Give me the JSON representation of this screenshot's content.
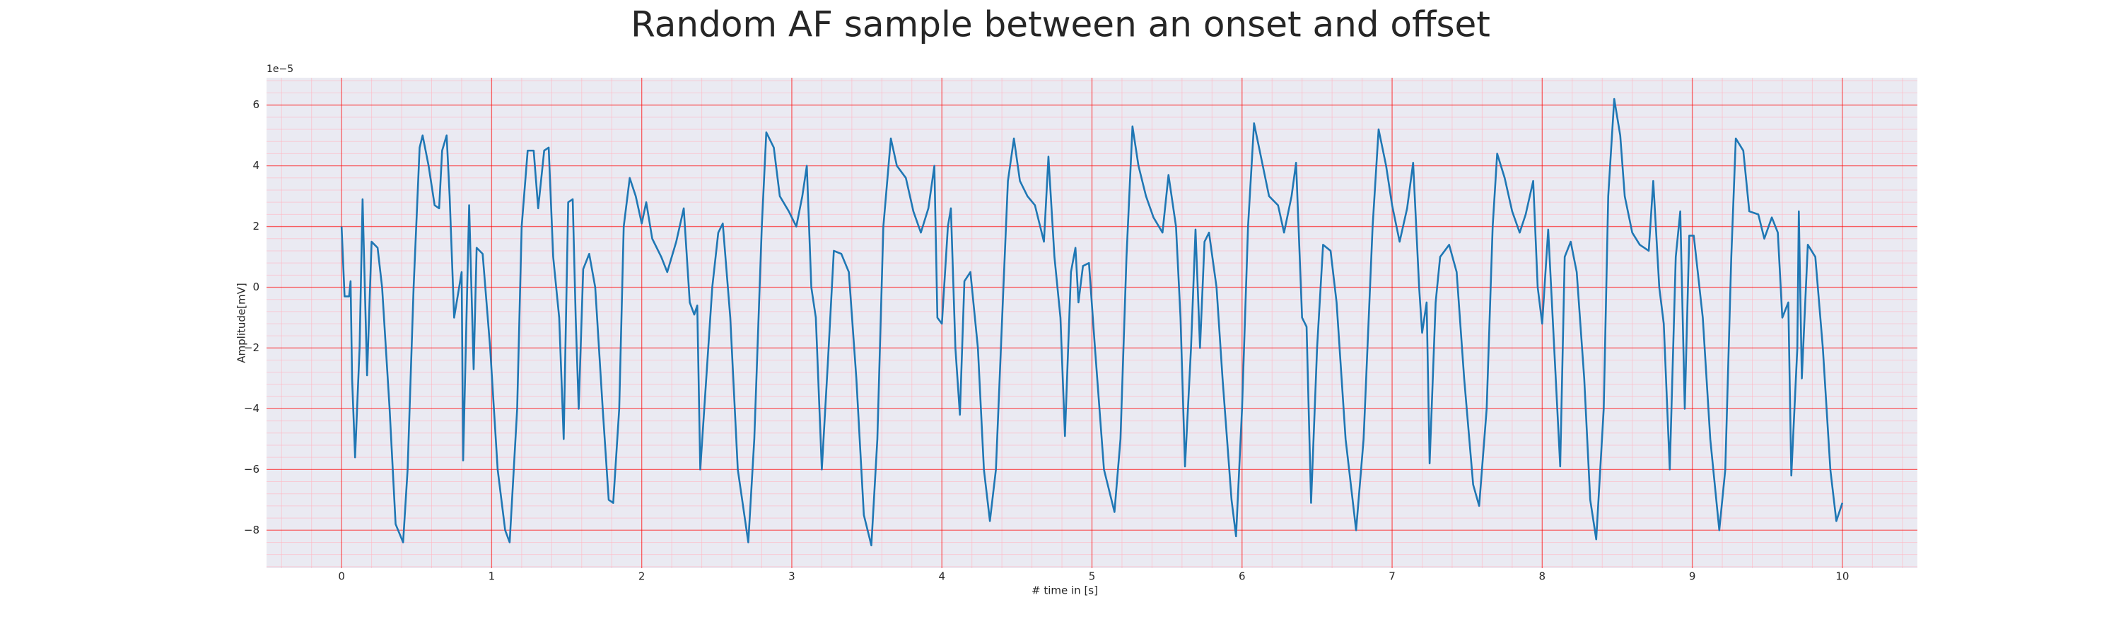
{
  "chart_data": {
    "type": "line",
    "title": "Random AF sample between an onset and offset",
    "xlabel": "# time in [s]",
    "ylabel": "Amplitude[mV]",
    "offset_label": "1e−5",
    "xlim": [
      -0.5,
      10.5
    ],
    "ylim": [
      -9.25,
      6.9
    ],
    "xticks": [
      0,
      1,
      2,
      3,
      4,
      5,
      6,
      7,
      8,
      9,
      10
    ],
    "yticks": [
      {
        "value": -8,
        "label": "−8"
      },
      {
        "value": -6,
        "label": "−6"
      },
      {
        "value": -4,
        "label": "−4"
      },
      {
        "value": -2,
        "label": "−2"
      },
      0,
      2,
      4,
      6
    ],
    "grid": true,
    "minor_grid": true,
    "series": [
      {
        "color": "#1f77b4",
        "x": [
          0,
          0.02,
          0.05,
          0.06,
          0.07,
          0.09,
          0.12,
          0.14,
          0.17,
          0.2,
          0.24,
          0.27,
          0.32,
          0.36,
          0.41,
          0.44,
          0.48,
          0.52,
          0.54,
          0.58,
          0.62,
          0.65,
          0.67,
          0.7,
          0.72,
          0.75,
          0.78,
          0.8,
          0.81,
          0.85,
          0.88,
          0.9,
          0.94,
          0.99,
          1.04,
          1.09,
          1.12,
          1.17,
          1.2,
          1.24,
          1.28,
          1.31,
          1.35,
          1.38,
          1.41,
          1.45,
          1.48,
          1.51,
          1.54,
          1.56,
          1.58,
          1.61,
          1.65,
          1.69,
          1.74,
          1.78,
          1.81,
          1.85,
          1.88,
          1.92,
          1.96,
          2.0,
          2.03,
          2.07,
          2.13,
          2.17,
          2.23,
          2.28,
          2.32,
          2.35,
          2.37,
          2.39,
          2.43,
          2.47,
          2.51,
          2.54,
          2.59,
          2.64,
          2.71,
          2.75,
          2.8,
          2.83,
          2.88,
          2.92,
          2.98,
          3.03,
          3.07,
          3.1,
          3.13,
          3.16,
          3.2,
          3.24,
          3.28,
          3.33,
          3.38,
          3.43,
          3.48,
          3.53,
          3.57,
          3.61,
          3.66,
          3.7,
          3.76,
          3.81,
          3.86,
          3.91,
          3.95,
          3.97,
          4.0,
          4.04,
          4.06,
          4.09,
          4.12,
          4.15,
          4.19,
          4.24,
          4.28,
          4.32,
          4.36,
          4.41,
          4.44,
          4.48,
          4.52,
          4.57,
          4.62,
          4.68,
          4.71,
          4.75,
          4.79,
          4.82,
          4.86,
          4.89,
          4.91,
          4.94,
          4.98,
          5.02,
          5.08,
          5.15,
          5.19,
          5.23,
          5.27,
          5.31,
          5.36,
          5.41,
          5.47,
          5.51,
          5.56,
          5.59,
          5.62,
          5.66,
          5.69,
          5.72,
          5.75,
          5.78,
          5.83,
          5.87,
          5.93,
          5.96,
          6.0,
          6.04,
          6.08,
          6.13,
          6.18,
          6.24,
          6.28,
          6.33,
          6.36,
          6.4,
          6.43,
          6.46,
          6.5,
          6.54,
          6.59,
          6.63,
          6.69,
          6.76,
          6.81,
          6.87,
          6.91,
          6.96,
          7.0,
          7.05,
          7.1,
          7.14,
          7.18,
          7.2,
          7.23,
          7.25,
          7.29,
          7.32,
          7.38,
          7.43,
          7.48,
          7.54,
          7.58,
          7.63,
          7.67,
          7.7,
          7.75,
          7.8,
          7.85,
          7.89,
          7.94,
          7.97,
          8.0,
          8.04,
          8.08,
          8.12,
          8.15,
          8.19,
          8.23,
          8.28,
          8.32,
          8.36,
          8.41,
          8.44,
          8.48,
          8.52,
          8.55,
          8.6,
          8.65,
          8.71,
          8.74,
          8.78,
          8.81,
          8.85,
          8.89,
          8.92,
          8.95,
          8.98,
          9.01,
          9.07,
          9.12,
          9.18,
          9.22,
          9.26,
          9.29,
          9.34,
          9.38,
          9.44,
          9.48,
          9.53,
          9.57,
          9.6,
          9.64,
          9.66,
          9.7,
          9.71,
          9.73,
          9.77,
          9.82,
          9.87,
          9.92,
          9.96,
          10.0
        ],
        "values": [
          2.0,
          -0.3,
          -0.3,
          0.2,
          -3,
          -5.6,
          -2,
          2.9,
          -2.9,
          1.5,
          1.3,
          0,
          -4,
          -7.8,
          -8.4,
          -6,
          0,
          4.6,
          5.0,
          4.0,
          2.7,
          2.6,
          4.5,
          5.0,
          3,
          -1,
          -0.1,
          0.5,
          -5.7,
          2.7,
          -2.7,
          1.3,
          1.1,
          -2,
          -6,
          -8.0,
          -8.4,
          -4,
          2,
          4.5,
          4.5,
          2.6,
          4.5,
          4.6,
          1,
          -1,
          -5,
          2.8,
          2.9,
          -1,
          -4,
          0.6,
          1.1,
          0,
          -4,
          -7,
          -7.1,
          -4,
          2,
          3.6,
          3.0,
          2.1,
          2.8,
          1.6,
          1.0,
          0.5,
          1.5,
          2.6,
          -0.5,
          -0.9,
          -0.6,
          -6,
          -3,
          0,
          1.8,
          2.1,
          -1,
          -6,
          -8.4,
          -5,
          2,
          5.1,
          4.6,
          3.0,
          2.5,
          2.0,
          3,
          4.0,
          0,
          -1,
          -6,
          -2.5,
          1.2,
          1.1,
          0.5,
          -3,
          -7.5,
          -8.5,
          -5,
          2,
          4.9,
          4.0,
          3.6,
          2.5,
          1.8,
          2.6,
          4.0,
          -1,
          -1.2,
          2.0,
          2.6,
          -2,
          -4.2,
          0.2,
          0.5,
          -2,
          -6,
          -7.7,
          -6,
          0,
          3.5,
          4.9,
          3.5,
          3.0,
          2.7,
          1.5,
          4.3,
          1,
          -1,
          -4.9,
          0.5,
          1.3,
          -0.5,
          0.7,
          0.8,
          -2,
          -6,
          -7.4,
          -5,
          1,
          5.3,
          4.0,
          3.0,
          2.3,
          1.8,
          3.7,
          2.0,
          -1,
          -5.9,
          -2,
          1.9,
          -2,
          1.5,
          1.8,
          0,
          -3,
          -7,
          -8.2,
          -4,
          2,
          5.4,
          4.2,
          3.0,
          2.7,
          1.8,
          3,
          4.1,
          -1,
          -1.3,
          -7.1,
          -2,
          1.4,
          1.2,
          -0.5,
          -5,
          -8.0,
          -5,
          2,
          5.2,
          4.0,
          2.7,
          1.5,
          2.6,
          4.1,
          0,
          -1.5,
          -0.5,
          -5.8,
          -0.5,
          1.0,
          1.4,
          0.5,
          -3,
          -6.5,
          -7.2,
          -4,
          2,
          4.4,
          3.6,
          2.5,
          1.8,
          2.4,
          3.5,
          0,
          -1.2,
          1.9,
          -2,
          -5.9,
          1.0,
          1.5,
          0.5,
          -3,
          -7,
          -8.3,
          -4,
          3,
          6.2,
          5.0,
          3.0,
          1.8,
          1.4,
          1.2,
          3.5,
          0,
          -1.2,
          -6,
          1,
          2.5,
          -4,
          1.7,
          1.7,
          -1,
          -5,
          -8.0,
          -6,
          1,
          4.9,
          4.5,
          2.5,
          2.4,
          1.6,
          2.3,
          1.8,
          -1,
          -0.5,
          -6.2,
          -2,
          2.5,
          -3,
          1.4,
          1.0,
          -2,
          -6,
          -7.7,
          -7.1
        ]
      }
    ]
  }
}
